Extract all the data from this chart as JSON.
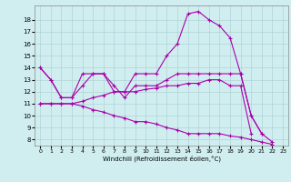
{
  "xlabel": "Windchill (Refroidissement éolien,°C)",
  "background_color": "#d0eef0",
  "line_color": "#aa00aa",
  "xlim": [
    -0.5,
    23.5
  ],
  "ylim": [
    7.5,
    19.2
  ],
  "xticks": [
    0,
    1,
    2,
    3,
    4,
    5,
    6,
    7,
    8,
    9,
    10,
    11,
    12,
    13,
    14,
    15,
    16,
    17,
    18,
    19,
    20,
    21,
    22,
    23
  ],
  "yticks": [
    8,
    9,
    10,
    11,
    12,
    13,
    14,
    15,
    16,
    17,
    18
  ],
  "series": [
    {
      "x": [
        0,
        1,
        2,
        3,
        4,
        5,
        6,
        7,
        8,
        9,
        10,
        11,
        12,
        13,
        14,
        15,
        16,
        17,
        18,
        19,
        20,
        21,
        22,
        23
      ],
      "y": [
        14.0,
        13.0,
        11.5,
        11.5,
        12.5,
        13.5,
        13.5,
        12.0,
        12.0,
        13.5,
        13.5,
        13.5,
        15.0,
        16.0,
        18.5,
        18.7,
        18.0,
        17.5,
        16.5,
        13.5,
        10.0,
        8.5,
        7.8,
        null
      ]
    },
    {
      "x": [
        0,
        1,
        2,
        3,
        4,
        5,
        6,
        7,
        8,
        9,
        10,
        11,
        12,
        13,
        14,
        15,
        16,
        17,
        18,
        19,
        20,
        21
      ],
      "y": [
        14.0,
        13.0,
        11.5,
        11.5,
        13.5,
        13.5,
        13.5,
        12.5,
        11.5,
        12.5,
        12.5,
        12.5,
        13.0,
        13.5,
        13.5,
        13.5,
        13.5,
        13.5,
        13.5,
        13.5,
        10.0,
        8.5
      ]
    },
    {
      "x": [
        0,
        1,
        2,
        3,
        4,
        5,
        6,
        7,
        8,
        9,
        10,
        11,
        12,
        13,
        14,
        15,
        16,
        17,
        18,
        19,
        20
      ],
      "y": [
        11.0,
        11.0,
        11.0,
        11.0,
        11.2,
        11.5,
        11.7,
        12.0,
        12.0,
        12.0,
        12.2,
        12.3,
        12.5,
        12.5,
        12.7,
        12.7,
        13.0,
        13.0,
        12.5,
        12.5,
        8.5
      ]
    },
    {
      "x": [
        0,
        1,
        2,
        3,
        4,
        5,
        6,
        7,
        8,
        9,
        10,
        11,
        12,
        13,
        14,
        15,
        16,
        17,
        18,
        19,
        20,
        21,
        22
      ],
      "y": [
        11.0,
        11.0,
        11.0,
        11.0,
        10.8,
        10.5,
        10.3,
        10.0,
        9.8,
        9.5,
        9.5,
        9.3,
        9.0,
        8.8,
        8.5,
        8.5,
        8.5,
        8.5,
        8.3,
        8.2,
        8.0,
        7.8,
        7.6
      ]
    }
  ]
}
